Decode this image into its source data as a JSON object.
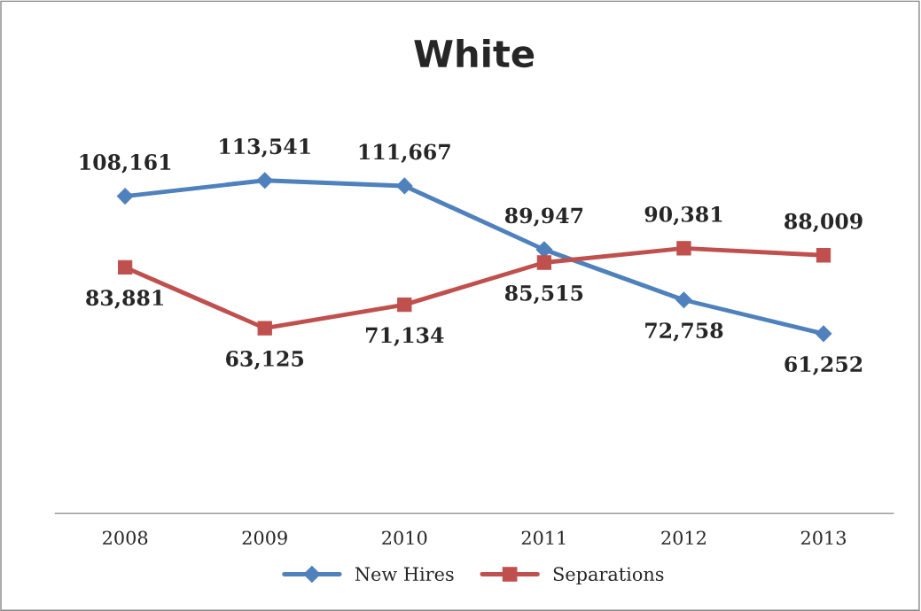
{
  "chart_data": {
    "type": "line",
    "title": "White",
    "categories": [
      "2008",
      "2009",
      "2010",
      "2011",
      "2012",
      "2013"
    ],
    "series": [
      {
        "name": "New Hires",
        "color": "#4f81bd",
        "values": [
          108161,
          113541,
          111667,
          89947,
          72758,
          61252
        ],
        "value_labels": [
          "108,161",
          "113,541",
          "111,667",
          "89,947",
          "72,758",
          "61,252"
        ],
        "marker": "diamond"
      },
      {
        "name": "Separations",
        "color": "#c0504d",
        "values": [
          83881,
          63125,
          71134,
          85515,
          90381,
          88009
        ],
        "value_labels": [
          "83,881",
          "63,125",
          "71,134",
          "85,515",
          "90,381",
          "88,009"
        ],
        "marker": "square"
      }
    ],
    "legend": "bottom",
    "tick_labels": "x",
    "line_style": "solid"
  }
}
